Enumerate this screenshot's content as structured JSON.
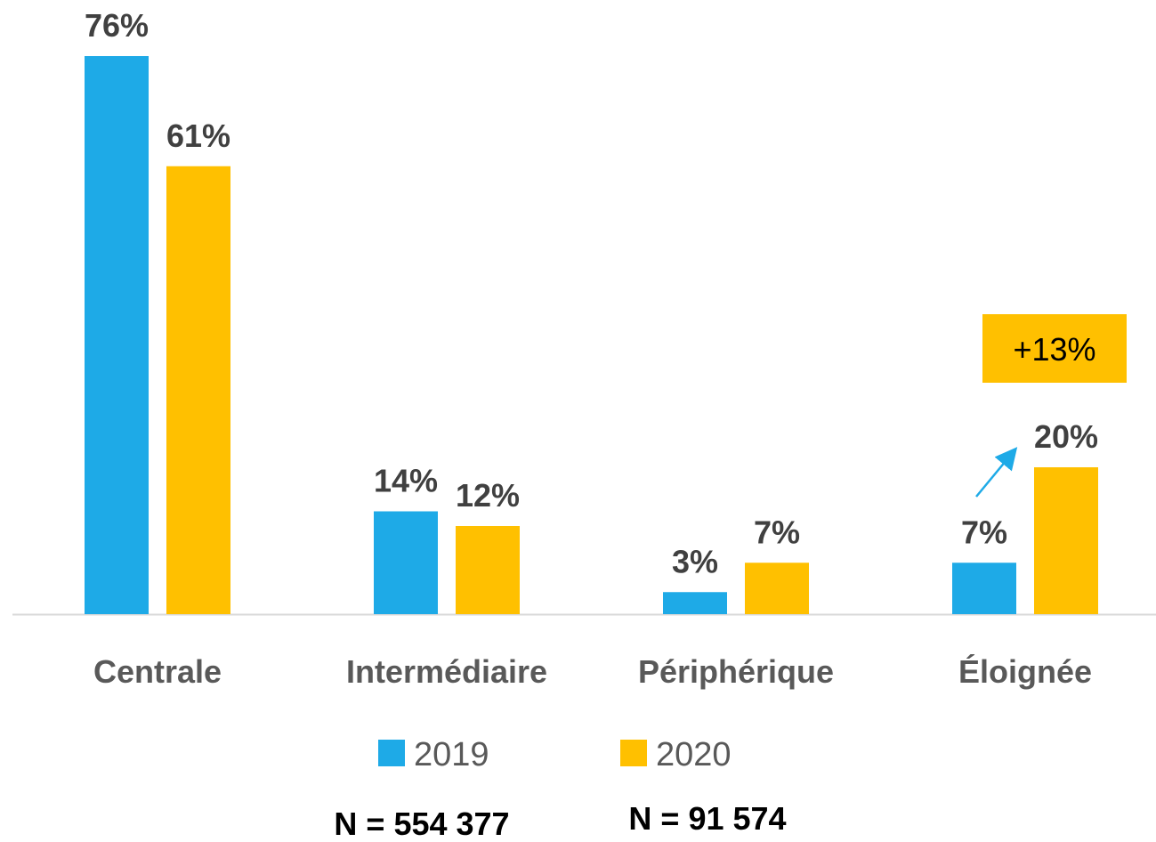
{
  "chart_data": {
    "type": "bar",
    "categories": [
      "Centrale",
      "Intermédiaire",
      "Périphérique",
      "Éloignée"
    ],
    "series": [
      {
        "name": "2019",
        "color": "#1eaae7",
        "values": [
          76,
          14,
          3,
          7
        ],
        "value_labels": [
          "76%",
          "14%",
          "3%",
          "7%"
        ]
      },
      {
        "name": "2020",
        "color": "#ffc000",
        "values": [
          61,
          12,
          7,
          20
        ],
        "value_labels": [
          "61%",
          "12%",
          "7%",
          "20%"
        ]
      }
    ],
    "ylim": [
      0,
      80
    ],
    "annotations": [
      {
        "text": "+13%"
      }
    ],
    "sample_sizes": [
      "N = 554 377",
      "N = 91 574"
    ]
  }
}
